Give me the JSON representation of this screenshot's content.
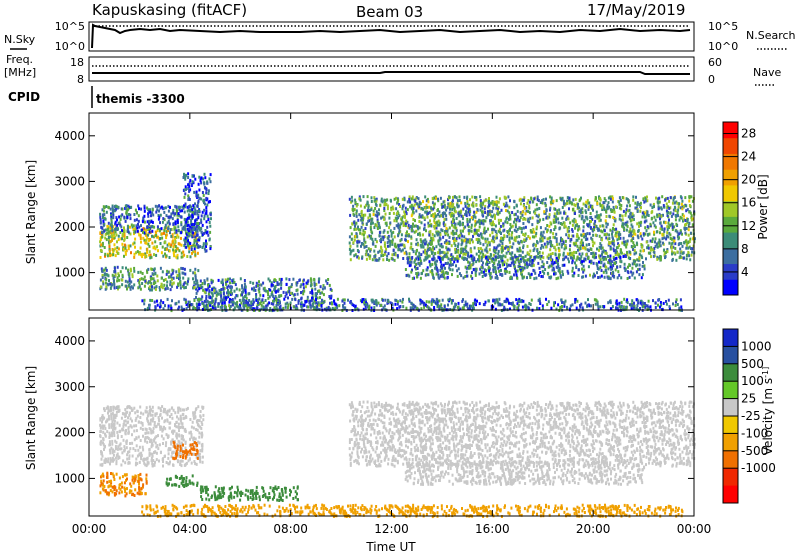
{
  "header": {
    "station": "Kapuskasing (fitACF)",
    "beam": "Beam 03",
    "date": "17/May/2019"
  },
  "top_panels": {
    "nsky_label": "N.Sky",
    "nsky_ticks": [
      "10^5",
      "10^0"
    ],
    "nsearch_label": "N.Search",
    "nsearch_ticks": [
      "10^5",
      "10^0"
    ],
    "freq_label": "Freq.",
    "freq_unit": "[MHz]",
    "freq_ticks": [
      "18",
      "8"
    ],
    "nave_label": "Nave",
    "nave_ticks": [
      "60",
      "0"
    ],
    "cpid_label": "CPID",
    "cpid_value": "themis -3300"
  },
  "colors": {
    "power": [
      "#0000ff",
      "#2a3cc8",
      "#3c6ea0",
      "#3c8c78",
      "#5aaa3c",
      "#a0c828",
      "#f0c800",
      "#f0a000",
      "#f07800",
      "#f04600",
      "#ff0000"
    ],
    "velocity": [
      "#1428c8",
      "#2850a0",
      "#3c8c3c",
      "#64c828",
      "#c8c8c8",
      "#f0c800",
      "#f0a000",
      "#f07000",
      "#f02800",
      "#ff0000"
    ]
  },
  "chart_data": [
    {
      "type": "heatmap",
      "title": "",
      "xlabel": "Time UT",
      "ylabel": "Slant Range [km]",
      "xlim": [
        "00:00",
        "24:00"
      ],
      "ylim": [
        180,
        4500
      ],
      "x_ticks": [
        "00:00",
        "04:00",
        "08:00",
        "12:00",
        "16:00",
        "20:00",
        "00:00"
      ],
      "y_ticks": [
        1000,
        2000,
        3000,
        4000
      ],
      "colorbar": {
        "label": "Power [dB]",
        "ticks": [
          4,
          8,
          12,
          16,
          20,
          24,
          28
        ],
        "range": [
          0,
          30
        ]
      },
      "regions": [
        {
          "t0": 0.4,
          "t1": 4.3,
          "r0": 1350,
          "r1": 2050,
          "value": 16
        },
        {
          "t0": 0.4,
          "t1": 4.3,
          "r0": 1900,
          "r1": 2500,
          "value": 6
        },
        {
          "t0": 0.4,
          "t1": 4.3,
          "r0": 650,
          "r1": 1150,
          "value": 9
        },
        {
          "t0": 3.7,
          "t1": 4.8,
          "r0": 1500,
          "r1": 3200,
          "value": 4
        },
        {
          "t0": 4.2,
          "t1": 9.6,
          "r0": 200,
          "r1": 900,
          "value": 7
        },
        {
          "t0": 10.3,
          "t1": 24.0,
          "r0": 1300,
          "r1": 2700,
          "value": 10
        },
        {
          "t0": 12.5,
          "t1": 22.0,
          "r0": 900,
          "r1": 1400,
          "value": 7
        },
        {
          "t0": 2.0,
          "t1": 23.5,
          "r0": 200,
          "r1": 450,
          "value": 6
        }
      ]
    },
    {
      "type": "heatmap",
      "title": "",
      "xlabel": "Time UT",
      "ylabel": "Slant Range [km]",
      "xlim": [
        "00:00",
        "24:00"
      ],
      "ylim": [
        180,
        4500
      ],
      "x_ticks": [
        "00:00",
        "04:00",
        "08:00",
        "12:00",
        "16:00",
        "20:00",
        "00:00"
      ],
      "y_ticks": [
        1000,
        2000,
        3000,
        4000
      ],
      "colorbar": {
        "label": "Velocity [m s^-1]",
        "ticks": [
          "1000",
          "500",
          "100",
          "25",
          "-25",
          "-100",
          "-500",
          "-1000"
        ]
      },
      "regions": [
        {
          "t0": 0.4,
          "t1": 4.5,
          "r0": 1300,
          "r1": 2600,
          "value": 0
        },
        {
          "t0": 3.3,
          "t1": 4.3,
          "r0": 1450,
          "r1": 1850,
          "value": -400
        },
        {
          "t0": 0.4,
          "t1": 2.3,
          "r0": 650,
          "r1": 1150,
          "value": -300
        },
        {
          "t0": 3.0,
          "t1": 4.3,
          "r0": 850,
          "r1": 1100,
          "value": 150
        },
        {
          "t0": 4.3,
          "t1": 8.3,
          "r0": 550,
          "r1": 850,
          "value": 150
        },
        {
          "t0": 10.3,
          "t1": 24.0,
          "r0": 1300,
          "r1": 2700,
          "value": 0
        },
        {
          "t0": 12.5,
          "t1": 22.0,
          "r0": 900,
          "r1": 1400,
          "value": 0
        },
        {
          "t0": 2.0,
          "t1": 23.5,
          "r0": 200,
          "r1": 450,
          "value": -80
        }
      ]
    }
  ]
}
